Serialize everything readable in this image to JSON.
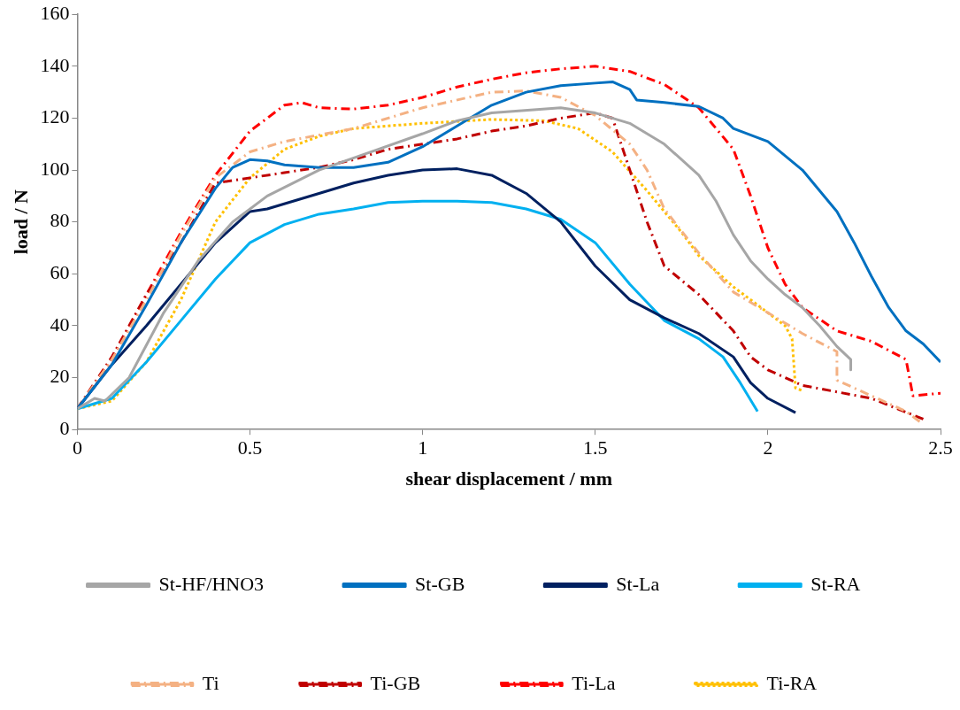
{
  "chart_data": {
    "type": "line",
    "xlabel": "shear displacement / mm",
    "ylabel": "load / N",
    "xlim": [
      0,
      2.5
    ],
    "xticks": [
      0,
      0.5,
      1,
      1.5,
      2,
      2.5
    ],
    "ylim": [
      0,
      160
    ],
    "yticks": [
      0,
      20,
      40,
      60,
      80,
      100,
      120,
      140,
      160
    ],
    "grid": false,
    "legend": "bottom",
    "marker": "none",
    "series": [
      {
        "name": "St-HF/HNO3",
        "color": "#a6a6a6",
        "line_style": "solid",
        "x": [
          0,
          0.05,
          0.08,
          0.15,
          0.25,
          0.35,
          0.45,
          0.55,
          0.7,
          0.85,
          1.0,
          1.1,
          1.2,
          1.4,
          1.5,
          1.6,
          1.7,
          1.8,
          1.85,
          1.9,
          1.95,
          2.0,
          2.05,
          2.1,
          2.15,
          2.2,
          2.24,
          2.24
        ],
        "values": [
          8,
          12,
          11,
          20,
          45,
          65,
          80,
          90,
          100,
          107,
          114,
          119,
          122,
          124,
          122,
          118,
          110,
          98,
          88,
          75,
          65,
          58,
          52,
          47,
          40,
          32,
          27,
          23
        ]
      },
      {
        "name": "St-GB",
        "color": "#0070c0",
        "line_style": "solid",
        "x": [
          0,
          0.1,
          0.2,
          0.3,
          0.4,
          0.45,
          0.5,
          0.55,
          0.6,
          0.7,
          0.8,
          0.9,
          1.0,
          1.1,
          1.2,
          1.3,
          1.4,
          1.5,
          1.55,
          1.6,
          1.62,
          1.7,
          1.8,
          1.87,
          1.9,
          2.0,
          2.1,
          2.2,
          2.25,
          2.3,
          2.35,
          2.4,
          2.45,
          2.5
        ],
        "values": [
          8,
          25,
          48,
          72,
          93,
          101,
          104,
          103.5,
          102,
          101,
          101,
          103,
          109,
          117,
          125,
          130,
          132.5,
          133.5,
          134,
          131,
          127,
          126,
          124.5,
          120,
          116,
          111,
          100,
          84,
          72,
          59,
          47,
          38,
          33,
          26
        ]
      },
      {
        "name": "St-La",
        "color": "#002060",
        "line_style": "solid",
        "x": [
          0,
          0.1,
          0.2,
          0.3,
          0.4,
          0.5,
          0.55,
          0.7,
          0.8,
          0.9,
          1.0,
          1.1,
          1.2,
          1.3,
          1.4,
          1.5,
          1.6,
          1.7,
          1.8,
          1.9,
          1.95,
          2.0,
          2.08
        ],
        "values": [
          8,
          25,
          40,
          56,
          72,
          84,
          85,
          91,
          95,
          98,
          100,
          100.5,
          98,
          91,
          80,
          63,
          50,
          43,
          37,
          28,
          18,
          12,
          6.5
        ]
      },
      {
        "name": "St-RA",
        "color": "#00b0f0",
        "line_style": "solid",
        "x": [
          0,
          0.1,
          0.2,
          0.3,
          0.4,
          0.5,
          0.6,
          0.7,
          0.8,
          0.9,
          1.0,
          1.1,
          1.2,
          1.3,
          1.4,
          1.5,
          1.6,
          1.7,
          1.8,
          1.87,
          1.92,
          1.97
        ],
        "values": [
          8,
          12,
          26,
          42,
          58,
          72,
          79,
          83,
          85,
          87.5,
          88,
          88,
          87.5,
          85,
          81,
          72,
          56,
          42,
          35,
          28,
          18,
          7
        ]
      },
      {
        "name": "Ti",
        "color": "#f4b183",
        "line_style": "dashed",
        "x": [
          0,
          0.1,
          0.2,
          0.3,
          0.4,
          0.5,
          0.6,
          0.8,
          1.0,
          1.2,
          1.3,
          1.4,
          1.5,
          1.6,
          1.65,
          1.7,
          1.8,
          1.9,
          2.0,
          2.1,
          2.2,
          2.2,
          2.3,
          2.4,
          2.44
        ],
        "values": [
          8,
          27,
          50,
          75,
          97,
          107,
          111,
          116,
          124,
          130,
          130.5,
          128,
          121,
          110,
          100,
          85,
          68,
          53,
          45,
          37,
          30,
          19,
          13,
          7,
          3
        ]
      },
      {
        "name": "Ti-GB",
        "color": "#c00000",
        "line_style": "dashed",
        "x": [
          0,
          0.1,
          0.2,
          0.3,
          0.4,
          0.5,
          0.6,
          0.7,
          0.8,
          0.9,
          1.0,
          1.1,
          1.2,
          1.3,
          1.4,
          1.5,
          1.55,
          1.6,
          1.65,
          1.7,
          1.8,
          1.9,
          1.95,
          2.0,
          2.1,
          2.3,
          2.45
        ],
        "values": [
          8,
          28,
          52,
          72,
          95,
          97,
          99,
          101,
          104,
          108,
          110,
          112,
          115,
          117,
          120,
          122,
          120,
          100,
          80,
          63,
          52,
          38,
          28,
          23,
          17,
          12,
          4
        ]
      },
      {
        "name": "Ti-La",
        "color": "#ff0000",
        "line_style": "dashed",
        "x": [
          0,
          0.1,
          0.2,
          0.3,
          0.4,
          0.5,
          0.6,
          0.65,
          0.7,
          0.8,
          0.9,
          1.0,
          1.1,
          1.2,
          1.3,
          1.4,
          1.5,
          1.6,
          1.7,
          1.8,
          1.9,
          1.95,
          2.0,
          2.05,
          2.1,
          2.2,
          2.3,
          2.4,
          2.42,
          2.5
        ],
        "values": [
          8,
          27,
          52,
          76,
          98,
          115,
          125,
          126,
          124,
          123.5,
          125,
          128,
          132,
          135,
          137.5,
          139,
          140,
          138,
          133,
          124,
          108,
          90,
          70,
          56,
          47,
          38,
          34,
          27,
          13,
          14
        ]
      },
      {
        "name": "Ti-RA",
        "color": "#ffc000",
        "line_style": "dotted",
        "x": [
          0,
          0.1,
          0.2,
          0.3,
          0.4,
          0.5,
          0.6,
          0.7,
          0.8,
          1.0,
          1.2,
          1.35,
          1.45,
          1.55,
          1.65,
          1.75,
          1.8,
          1.9,
          2.0,
          2.05,
          2.07,
          2.08,
          2.1
        ],
        "values": [
          8,
          11,
          26,
          50,
          80,
          97,
          108,
          113,
          116,
          118,
          119.5,
          119,
          116,
          107,
          92,
          76,
          67,
          55,
          45,
          40,
          35,
          16,
          15
        ]
      }
    ]
  }
}
